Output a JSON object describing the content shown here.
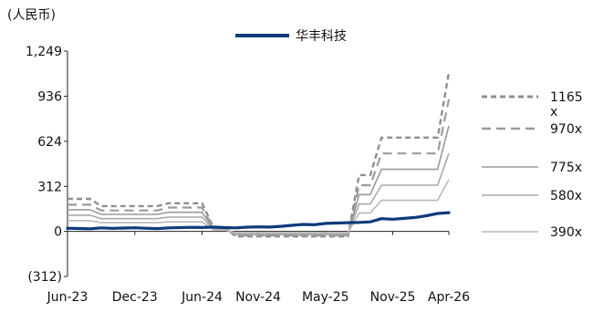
{
  "chart_data": {
    "type": "line",
    "unit_label": "(人民币)",
    "title": "",
    "xlabel": "",
    "ylabel": "",
    "x_tick_labels": [
      "Jun-23",
      "Dec-23",
      "Jun-24",
      "Nov-24",
      "May-25",
      "Nov-25",
      "Apr-26"
    ],
    "y_tick_labels": [
      "1,249",
      "936",
      "624",
      "312",
      "0",
      "(312)"
    ],
    "ylim": [
      -312,
      1249
    ],
    "xlim": [
      "2023-06",
      "2026-04"
    ],
    "grid": false,
    "legend_position": "top",
    "price_series": {
      "name": "华丰科技",
      "color": "#0d3b7a",
      "x": [
        "2023-06",
        "2023-07",
        "2023-08",
        "2023-09",
        "2023-10",
        "2023-11",
        "2023-12",
        "2024-01",
        "2024-02",
        "2024-03",
        "2024-04",
        "2024-05",
        "2024-06",
        "2024-07",
        "2024-08",
        "2024-09",
        "2024-10",
        "2024-11",
        "2024-12",
        "2025-01",
        "2025-02",
        "2025-03",
        "2025-04",
        "2025-05",
        "2025-06",
        "2025-07",
        "2025-08",
        "2025-09",
        "2025-10",
        "2025-11",
        "2025-12",
        "2026-01",
        "2026-02",
        "2026-03",
        "2026-04"
      ],
      "values": [
        22,
        20,
        18,
        24,
        21,
        23,
        25,
        22,
        19,
        24,
        26,
        28,
        27,
        30,
        26,
        24,
        29,
        31,
        30,
        35,
        42,
        48,
        46,
        55,
        58,
        60,
        62,
        66,
        88,
        84,
        90,
        96,
        108,
        124,
        130
      ]
    },
    "band_series": [
      {
        "name": "1165 x",
        "color": "#8f8f8f",
        "dash": "6,4",
        "x": [
          "2023-06",
          "2023-07",
          "2023-08",
          "2023-09",
          "2023-10",
          "2023-11",
          "2023-12",
          "2024-01",
          "2024-02",
          "2024-03",
          "2024-04",
          "2024-05",
          "2024-06",
          "2024-07",
          "2024-08",
          "2024-09",
          "2024-10",
          "2024-11",
          "2024-12",
          "2025-01",
          "2025-02",
          "2025-03",
          "2025-04",
          "2025-05",
          "2025-06",
          "2025-07",
          "2025-08",
          "2025-09",
          "2025-10",
          "2025-11",
          "2025-12",
          "2026-01",
          "2026-02",
          "2026-03",
          "2026-04"
        ],
        "values": [
          225,
          225,
          225,
          175,
          175,
          175,
          175,
          175,
          175,
          195,
          195,
          195,
          195,
          30,
          30,
          -35,
          -35,
          -35,
          -35,
          -35,
          -35,
          -35,
          -35,
          -35,
          -35,
          -35,
          390,
          390,
          650,
          650,
          650,
          650,
          650,
          650,
          1100
        ]
      },
      {
        "name": "970x",
        "color": "#9b9b9b",
        "dash": "10,6",
        "x": [
          "2023-06",
          "2023-07",
          "2023-08",
          "2023-09",
          "2023-10",
          "2023-11",
          "2023-12",
          "2024-01",
          "2024-02",
          "2024-03",
          "2024-04",
          "2024-05",
          "2024-06",
          "2024-07",
          "2024-08",
          "2024-09",
          "2024-10",
          "2024-11",
          "2024-12",
          "2025-01",
          "2025-02",
          "2025-03",
          "2025-04",
          "2025-05",
          "2025-06",
          "2025-07",
          "2025-08",
          "2025-09",
          "2025-10",
          "2025-11",
          "2025-12",
          "2026-01",
          "2026-02",
          "2026-03",
          "2026-04"
        ],
        "values": [
          185,
          185,
          185,
          145,
          145,
          145,
          145,
          145,
          145,
          165,
          165,
          165,
          165,
          25,
          25,
          -28,
          -28,
          -28,
          -28,
          -28,
          -28,
          -28,
          -28,
          -28,
          -28,
          -28,
          320,
          320,
          540,
          540,
          540,
          540,
          540,
          540,
          915
        ]
      },
      {
        "name": "775x",
        "color": "#9a9a9a",
        "dash": "",
        "x": [
          "2023-06",
          "2023-07",
          "2023-08",
          "2023-09",
          "2023-10",
          "2023-11",
          "2023-12",
          "2024-01",
          "2024-02",
          "2024-03",
          "2024-04",
          "2024-05",
          "2024-06",
          "2024-07",
          "2024-08",
          "2024-09",
          "2024-10",
          "2024-11",
          "2024-12",
          "2025-01",
          "2025-02",
          "2025-03",
          "2025-04",
          "2025-05",
          "2025-06",
          "2025-07",
          "2025-08",
          "2025-09",
          "2025-10",
          "2025-11",
          "2025-12",
          "2026-01",
          "2026-02",
          "2026-03",
          "2026-04"
        ],
        "values": [
          150,
          150,
          150,
          118,
          118,
          118,
          118,
          118,
          118,
          132,
          132,
          132,
          132,
          20,
          20,
          -22,
          -22,
          -22,
          -22,
          -22,
          -22,
          -22,
          -22,
          -22,
          -22,
          -22,
          255,
          255,
          430,
          430,
          430,
          430,
          430,
          430,
          730
        ]
      },
      {
        "name": "580x",
        "color": "#a8a8a8",
        "dash": "",
        "x": [
          "2023-06",
          "2023-07",
          "2023-08",
          "2023-09",
          "2023-10",
          "2023-11",
          "2023-12",
          "2024-01",
          "2024-02",
          "2024-03",
          "2024-04",
          "2024-05",
          "2024-06",
          "2024-07",
          "2024-08",
          "2024-09",
          "2024-10",
          "2024-11",
          "2024-12",
          "2025-01",
          "2025-02",
          "2025-03",
          "2025-04",
          "2025-05",
          "2025-06",
          "2025-07",
          "2025-08",
          "2025-09",
          "2025-10",
          "2025-11",
          "2025-12",
          "2026-01",
          "2026-02",
          "2026-03",
          "2026-04"
        ],
        "values": [
          112,
          112,
          112,
          88,
          88,
          88,
          88,
          88,
          88,
          99,
          99,
          99,
          99,
          15,
          15,
          -16,
          -16,
          -16,
          -16,
          -16,
          -16,
          -16,
          -16,
          -16,
          -16,
          -16,
          190,
          190,
          320,
          320,
          320,
          320,
          320,
          320,
          540
        ]
      },
      {
        "name": "390x",
        "color": "#b8b8b8",
        "dash": "",
        "x": [
          "2023-06",
          "2023-07",
          "2023-08",
          "2023-09",
          "2023-10",
          "2023-11",
          "2023-12",
          "2024-01",
          "2024-02",
          "2024-03",
          "2024-04",
          "2024-05",
          "2024-06",
          "2024-07",
          "2024-08",
          "2024-09",
          "2024-10",
          "2024-11",
          "2024-12",
          "2025-01",
          "2025-02",
          "2025-03",
          "2025-04",
          "2025-05",
          "2025-06",
          "2025-07",
          "2025-08",
          "2025-09",
          "2025-10",
          "2025-11",
          "2025-12",
          "2026-01",
          "2026-02",
          "2026-03",
          "2026-04"
        ],
        "values": [
          75,
          75,
          75,
          60,
          60,
          60,
          60,
          60,
          60,
          66,
          66,
          66,
          66,
          10,
          10,
          -10,
          -10,
          -10,
          -10,
          -10,
          -10,
          -10,
          -10,
          -10,
          -10,
          -10,
          128,
          128,
          215,
          215,
          215,
          215,
          215,
          215,
          360
        ]
      }
    ]
  }
}
